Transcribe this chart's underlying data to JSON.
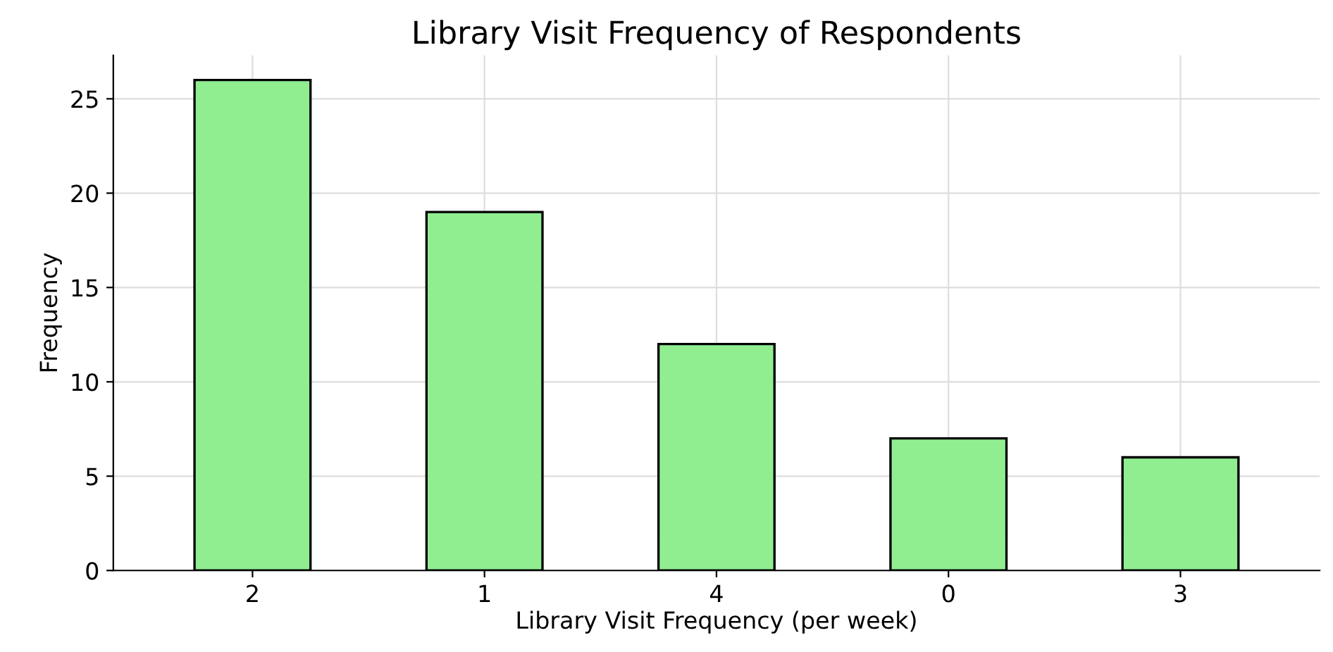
{
  "chart_data": {
    "type": "bar",
    "title": "Library Visit Frequency of Respondents",
    "xlabel": "Library Visit Frequency (per week)",
    "ylabel": "Frequency",
    "categories": [
      "2",
      "1",
      "4",
      "0",
      "3"
    ],
    "values": [
      26,
      19,
      12,
      7,
      6
    ],
    "color": "#90ee90",
    "ylim": [
      0,
      27.3
    ],
    "yticks": [
      0,
      5,
      10,
      15,
      20,
      25
    ],
    "grid": true
  }
}
